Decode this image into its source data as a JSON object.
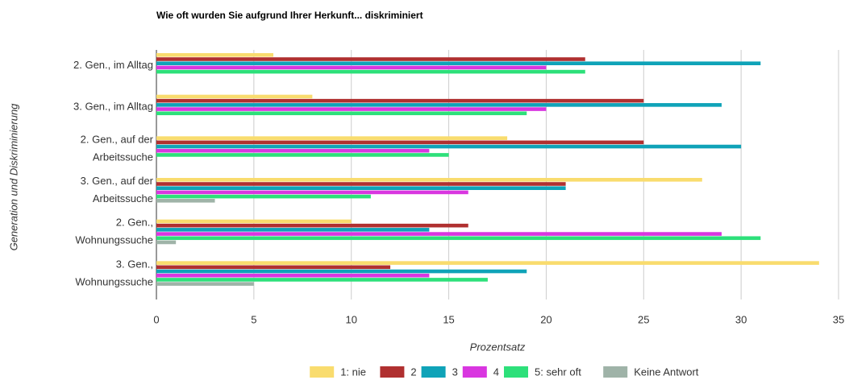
{
  "chart_data": {
    "type": "hbar",
    "title": "Wie oft wurden Sie aufgrund Ihrer Herkunft... diskriminiert",
    "x_label": "Prozentsatz",
    "y_label": "Generation und Diskriminierung",
    "categories": [
      [
        "2. Gen., im Alltag"
      ],
      [
        "3. Gen.,  im Alltag"
      ],
      [
        "2. Gen.,  auf der",
        "Arbeitssuche"
      ],
      [
        "3. Gen., auf der",
        "Arbeitssuche"
      ],
      [
        "2. Gen.,",
        "Wohnungssuche"
      ],
      [
        "3. Gen.,",
        "Wohnungssuche"
      ]
    ],
    "series": [
      {
        "name": "1: nie",
        "color": "#f9dc6e",
        "values": [
          6,
          8,
          18,
          28,
          10,
          34
        ]
      },
      {
        "name": "2",
        "color": "#b03030",
        "values": [
          22,
          25,
          25,
          21,
          16,
          12
        ]
      },
      {
        "name": "3",
        "color": "#0fa3b8",
        "values": [
          31,
          29,
          30,
          21,
          14,
          19
        ]
      },
      {
        "name": "4",
        "color": "#d936e0",
        "values": [
          20,
          20,
          14,
          16,
          29,
          14
        ]
      },
      {
        "name": "5: sehr oft",
        "color": "#2de07a",
        "values": [
          22,
          19,
          15,
          11,
          31,
          17
        ]
      },
      {
        "name": "Keine Antwort",
        "color": "#9fb3a8",
        "values": [
          0,
          0,
          0,
          3,
          1,
          5
        ]
      }
    ],
    "xlim": [
      0,
      35
    ],
    "xticks": [
      0,
      5,
      10,
      15,
      20,
      25,
      30,
      35
    ],
    "grid": true,
    "legend": "bottom"
  }
}
